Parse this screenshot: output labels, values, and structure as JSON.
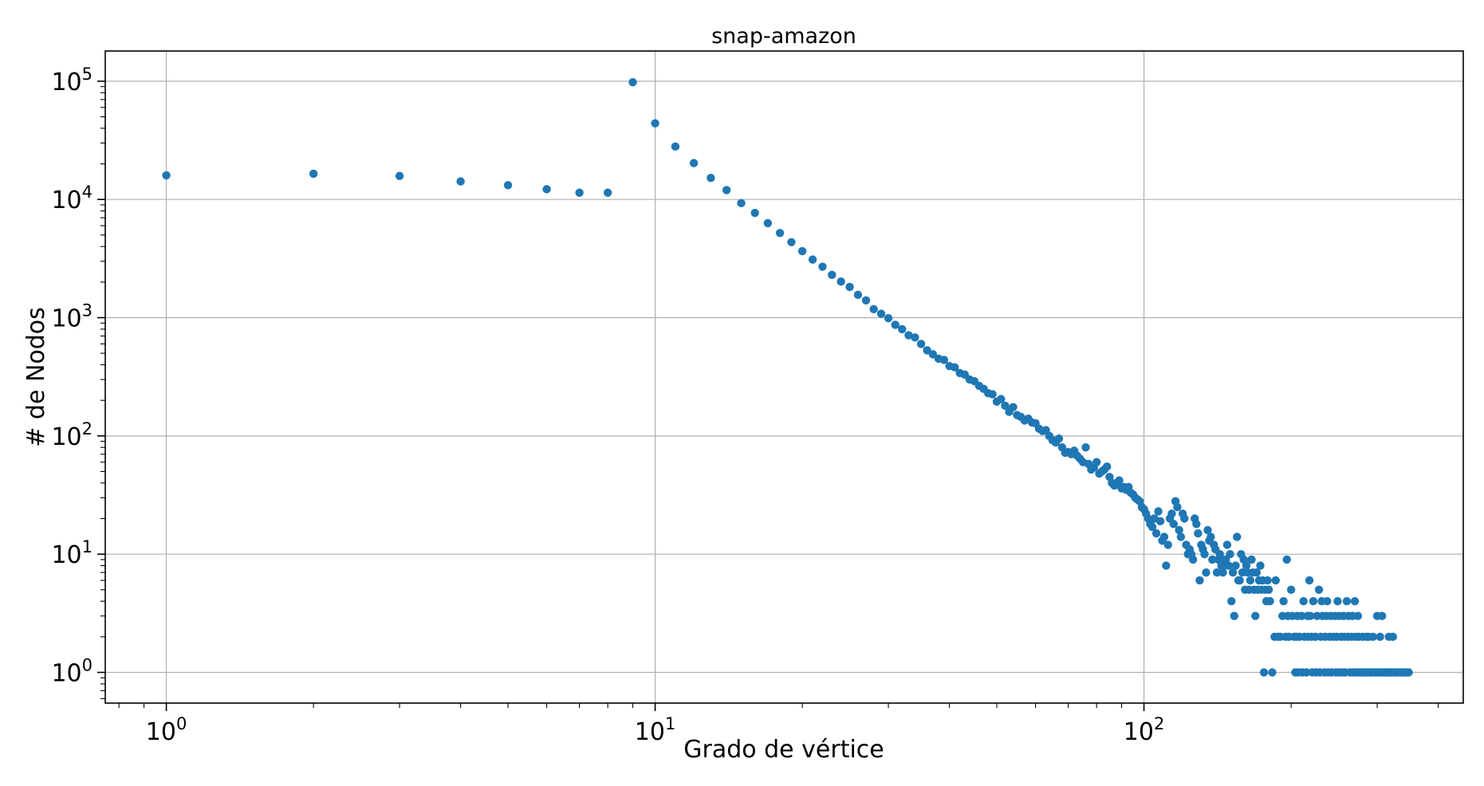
{
  "chart_data": {
    "type": "scatter",
    "title": "snap-amazon",
    "xlabel": "Grado de vértice",
    "ylabel": "# de Nodos",
    "xscale": "log",
    "yscale": "log",
    "xlim": [
      0.75,
      450
    ],
    "ylim": [
      0.55,
      180000
    ],
    "grid": true,
    "color": "#1f77b4",
    "x_ticks": [
      {
        "value": 1,
        "base": "10",
        "exp": "0"
      },
      {
        "value": 10,
        "base": "10",
        "exp": "1"
      },
      {
        "value": 100,
        "base": "10",
        "exp": "2"
      }
    ],
    "y_ticks": [
      {
        "value": 1,
        "base": "10",
        "exp": "0"
      },
      {
        "value": 10,
        "base": "10",
        "exp": "1"
      },
      {
        "value": 100,
        "base": "10",
        "exp": "2"
      },
      {
        "value": 1000,
        "base": "10",
        "exp": "3"
      },
      {
        "value": 10000,
        "base": "10",
        "exp": "4"
      },
      {
        "value": 100000,
        "base": "10",
        "exp": "5"
      }
    ],
    "points": [
      [
        1,
        16000
      ],
      [
        2,
        16500
      ],
      [
        3,
        15800
      ],
      [
        4,
        14200
      ],
      [
        5,
        13200
      ],
      [
        6,
        12200
      ],
      [
        7,
        11400
      ],
      [
        8,
        11400
      ],
      [
        9,
        98000
      ],
      [
        10,
        44000
      ],
      [
        11,
        28000
      ],
      [
        12,
        20300
      ],
      [
        13,
        15200
      ],
      [
        14,
        12000
      ],
      [
        15,
        9300
      ],
      [
        16,
        7700
      ],
      [
        17,
        6300
      ],
      [
        18,
        5200
      ],
      [
        19,
        4350
      ],
      [
        20,
        3650
      ],
      [
        21,
        3100
      ],
      [
        22,
        2700
      ],
      [
        23,
        2300
      ],
      [
        24,
        2020
      ],
      [
        25,
        1820
      ],
      [
        26,
        1560
      ],
      [
        27,
        1400
      ],
      [
        28,
        1180
      ],
      [
        29,
        1080
      ],
      [
        30,
        990
      ],
      [
        31,
        870
      ],
      [
        32,
        800
      ],
      [
        33,
        710
      ],
      [
        34,
        680
      ],
      [
        35,
        600
      ],
      [
        36,
        530
      ],
      [
        37,
        490
      ],
      [
        38,
        450
      ],
      [
        39,
        440
      ],
      [
        40,
        390
      ],
      [
        41,
        380
      ],
      [
        42,
        340
      ],
      [
        43,
        330
      ],
      [
        44,
        300
      ],
      [
        45,
        290
      ],
      [
        46,
        265
      ],
      [
        47,
        250
      ],
      [
        48,
        230
      ],
      [
        49,
        225
      ],
      [
        50,
        195
      ],
      [
        51,
        205
      ],
      [
        52,
        180
      ],
      [
        53,
        160
      ],
      [
        54,
        175
      ],
      [
        55,
        150
      ],
      [
        56,
        145
      ],
      [
        57,
        135
      ],
      [
        58,
        140
      ],
      [
        59,
        130
      ],
      [
        60,
        128
      ],
      [
        61,
        115
      ],
      [
        62,
        110
      ],
      [
        63,
        112
      ],
      [
        64,
        100
      ],
      [
        65,
        92
      ],
      [
        66,
        88
      ],
      [
        67,
        95
      ],
      [
        68,
        80
      ],
      [
        69,
        72
      ],
      [
        70,
        73
      ],
      [
        71,
        70
      ],
      [
        72,
        75
      ],
      [
        73,
        68
      ],
      [
        74,
        64
      ],
      [
        75,
        60
      ],
      [
        76,
        80
      ],
      [
        77,
        58
      ],
      [
        78,
        52
      ],
      [
        79,
        54
      ],
      [
        80,
        60
      ],
      [
        81,
        48
      ],
      [
        82,
        50
      ],
      [
        83,
        52
      ],
      [
        84,
        55
      ],
      [
        85,
        45
      ],
      [
        86,
        40
      ],
      [
        87,
        38
      ],
      [
        88,
        40
      ],
      [
        89,
        42
      ],
      [
        90,
        36
      ],
      [
        91,
        37
      ],
      [
        92,
        35
      ],
      [
        93,
        37
      ],
      [
        94,
        33
      ],
      [
        95,
        32
      ],
      [
        96,
        30
      ],
      [
        97,
        29
      ],
      [
        98,
        28
      ],
      [
        99,
        25
      ],
      [
        100,
        24
      ],
      [
        101,
        22
      ],
      [
        102,
        20
      ],
      [
        103,
        18
      ],
      [
        104,
        17
      ],
      [
        105,
        20
      ],
      [
        106,
        15
      ],
      [
        107,
        23
      ],
      [
        108,
        19
      ],
      [
        109,
        13
      ],
      [
        110,
        14
      ],
      [
        111,
        8
      ],
      [
        112,
        12
      ],
      [
        113,
        20
      ],
      [
        114,
        22
      ],
      [
        115,
        18
      ],
      [
        116,
        28
      ],
      [
        117,
        25
      ],
      [
        118,
        16
      ],
      [
        119,
        14
      ],
      [
        120,
        22
      ],
      [
        121,
        20
      ],
      [
        122,
        12
      ],
      [
        123,
        10
      ],
      [
        124,
        11
      ],
      [
        125,
        10
      ],
      [
        126,
        9
      ],
      [
        127,
        20
      ],
      [
        128,
        18
      ],
      [
        129,
        15
      ],
      [
        130,
        6
      ],
      [
        131,
        12
      ],
      [
        132,
        11
      ],
      [
        133,
        10
      ],
      [
        134,
        7
      ],
      [
        135,
        16
      ],
      [
        136,
        13
      ],
      [
        137,
        14
      ],
      [
        138,
        9
      ],
      [
        139,
        12
      ],
      [
        140,
        11
      ],
      [
        141,
        7
      ],
      [
        142,
        9
      ],
      [
        143,
        10
      ],
      [
        144,
        8
      ],
      [
        145,
        7
      ],
      [
        146,
        8
      ],
      [
        147,
        9
      ],
      [
        148,
        12
      ],
      [
        149,
        8
      ],
      [
        150,
        10
      ],
      [
        151,
        4
      ],
      [
        152,
        7
      ],
      [
        153,
        3
      ],
      [
        154,
        8
      ],
      [
        155,
        14
      ],
      [
        156,
        6
      ],
      [
        157,
        6
      ],
      [
        158,
        10
      ],
      [
        159,
        7
      ],
      [
        160,
        9
      ],
      [
        161,
        5
      ],
      [
        162,
        8
      ],
      [
        163,
        7
      ],
      [
        164,
        5
      ],
      [
        165,
        6
      ],
      [
        166,
        9
      ],
      [
        167,
        7
      ],
      [
        168,
        5
      ],
      [
        169,
        3
      ],
      [
        170,
        7
      ],
      [
        171,
        5
      ],
      [
        172,
        6
      ],
      [
        173,
        8
      ],
      [
        174,
        5
      ],
      [
        175,
        6
      ],
      [
        176,
        1
      ],
      [
        177,
        5
      ],
      [
        178,
        4
      ],
      [
        179,
        6
      ],
      [
        180,
        5
      ],
      [
        181,
        4
      ],
      [
        183,
        1
      ],
      [
        185,
        2
      ],
      [
        186,
        6
      ],
      [
        188,
        2
      ],
      [
        190,
        2
      ],
      [
        192,
        3
      ],
      [
        193,
        4
      ],
      [
        195,
        2
      ],
      [
        196,
        9
      ],
      [
        197,
        3
      ],
      [
        198,
        2
      ],
      [
        200,
        5
      ],
      [
        201,
        3
      ],
      [
        203,
        2
      ],
      [
        204,
        1
      ],
      [
        205,
        2
      ],
      [
        206,
        3
      ],
      [
        207,
        1
      ],
      [
        208,
        2
      ],
      [
        210,
        3
      ],
      [
        211,
        1
      ],
      [
        212,
        4
      ],
      [
        213,
        2
      ],
      [
        215,
        1
      ],
      [
        216,
        3
      ],
      [
        217,
        2
      ],
      [
        218,
        6
      ],
      [
        219,
        3
      ],
      [
        220,
        2
      ],
      [
        221,
        1
      ],
      [
        222,
        4
      ],
      [
        224,
        2
      ],
      [
        225,
        1
      ],
      [
        226,
        3
      ],
      [
        228,
        5
      ],
      [
        229,
        1
      ],
      [
        230,
        2
      ],
      [
        231,
        4
      ],
      [
        232,
        3
      ],
      [
        234,
        1
      ],
      [
        235,
        2
      ],
      [
        236,
        3
      ],
      [
        237,
        4
      ],
      [
        238,
        1
      ],
      [
        240,
        2
      ],
      [
        241,
        3
      ],
      [
        242,
        1
      ],
      [
        244,
        2
      ],
      [
        246,
        3
      ],
      [
        247,
        1
      ],
      [
        248,
        2
      ],
      [
        249,
        4
      ],
      [
        250,
        1
      ],
      [
        251,
        3
      ],
      [
        253,
        2
      ],
      [
        254,
        1
      ],
      [
        256,
        3
      ],
      [
        257,
        2
      ],
      [
        258,
        1
      ],
      [
        260,
        4
      ],
      [
        261,
        2
      ],
      [
        262,
        3
      ],
      [
        264,
        1
      ],
      [
        266,
        2
      ],
      [
        267,
        3
      ],
      [
        268,
        1
      ],
      [
        270,
        4
      ],
      [
        271,
        2
      ],
      [
        272,
        1
      ],
      [
        274,
        3
      ],
      [
        275,
        2
      ],
      [
        276,
        1
      ],
      [
        278,
        1
      ],
      [
        280,
        2
      ],
      [
        281,
        1
      ],
      [
        283,
        1
      ],
      [
        285,
        2
      ],
      [
        286,
        1
      ],
      [
        288,
        2
      ],
      [
        290,
        1
      ],
      [
        292,
        1
      ],
      [
        294,
        2
      ],
      [
        296,
        1
      ],
      [
        298,
        1
      ],
      [
        300,
        3
      ],
      [
        302,
        1
      ],
      [
        304,
        2
      ],
      [
        306,
        1
      ],
      [
        307,
        3
      ],
      [
        309,
        1
      ],
      [
        311,
        1
      ],
      [
        313,
        1
      ],
      [
        315,
        1
      ],
      [
        317,
        2
      ],
      [
        319,
        1
      ],
      [
        321,
        1
      ],
      [
        323,
        2
      ],
      [
        325,
        1
      ],
      [
        327,
        1
      ],
      [
        329,
        1
      ],
      [
        332,
        1
      ],
      [
        335,
        1
      ],
      [
        338,
        1
      ],
      [
        341,
        1
      ],
      [
        345,
        1
      ],
      [
        348,
        1
      ]
    ]
  }
}
